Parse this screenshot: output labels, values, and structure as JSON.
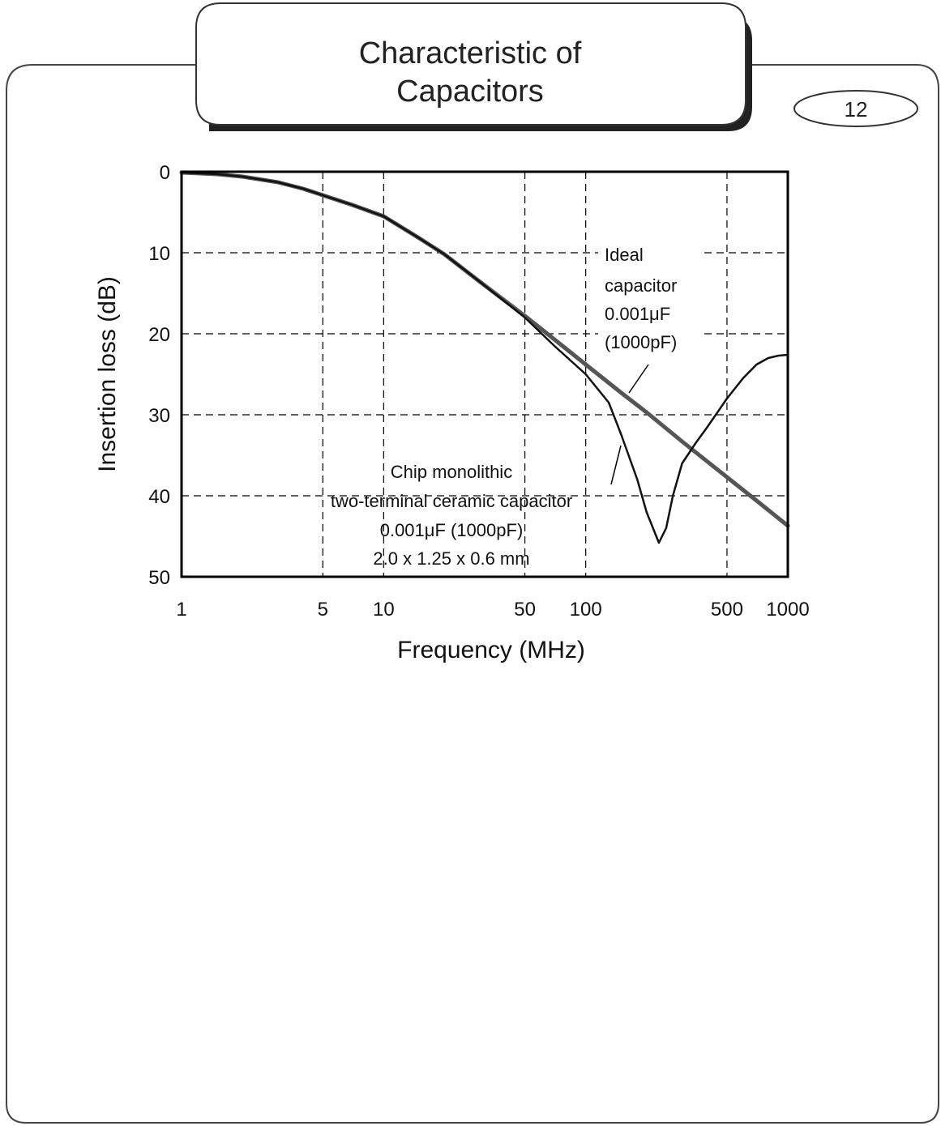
{
  "page": {
    "title_line1": "Characteristic of",
    "title_line2": "Capacitors",
    "page_number": "12"
  },
  "chart_data": {
    "type": "line",
    "xlabel": "Frequency (MHz)",
    "ylabel": "Insertion loss (dB)",
    "xscale": "log",
    "xlim": [
      1,
      1000
    ],
    "ylim": [
      0,
      50
    ],
    "y_inverted": true,
    "grid": true,
    "x_ticks": [
      1,
      5,
      10,
      50,
      100,
      500,
      1000
    ],
    "x_tick_labels": [
      "1",
      "5",
      "10",
      "50",
      "100",
      "500",
      "1000"
    ],
    "y_ticks": [
      0,
      10,
      20,
      30,
      40,
      50
    ],
    "y_tick_labels": [
      "0",
      "10",
      "20",
      "30",
      "40",
      "50"
    ],
    "series": [
      {
        "role": "ideal",
        "color": "#555555",
        "x": [
          1,
          1.5,
          2,
          3,
          4,
          5,
          7,
          10,
          15,
          20,
          30,
          50,
          70,
          100,
          150,
          200,
          300,
          500,
          700,
          1000
        ],
        "y": [
          0.1,
          0.3,
          0.6,
          1.3,
          2.1,
          2.9,
          4.1,
          5.5,
          8.2,
          10.2,
          13.6,
          17.8,
          20.7,
          23.8,
          27.3,
          29.7,
          33.3,
          37.7,
          40.6,
          43.7
        ]
      },
      {
        "role": "chip",
        "color": "#111111",
        "x": [
          1,
          1.5,
          2,
          3,
          4,
          5,
          7,
          10,
          15,
          20,
          30,
          50,
          70,
          100,
          130,
          150,
          180,
          200,
          230,
          250,
          270,
          300,
          350,
          400,
          500,
          600,
          700,
          800,
          900,
          1000
        ],
        "y": [
          0.1,
          0.3,
          0.6,
          1.3,
          2.1,
          2.9,
          4.1,
          5.5,
          8.2,
          10.2,
          13.6,
          18.0,
          21.5,
          25.0,
          28.5,
          32.5,
          38.0,
          42.0,
          45.8,
          44.0,
          40.0,
          36.0,
          33.5,
          31.5,
          28.0,
          25.5,
          23.8,
          23.0,
          22.7,
          22.6
        ]
      }
    ],
    "annotations": {
      "ideal": [
        "Ideal",
        "capacitor",
        "0.001μF",
        "(1000pF)"
      ],
      "chip": [
        "Chip monolithic",
        "two-terminal ceramic capacitor",
        "0.001μF (1000pF)",
        "2.0 x 1.25 x 0.6 mm"
      ]
    }
  }
}
